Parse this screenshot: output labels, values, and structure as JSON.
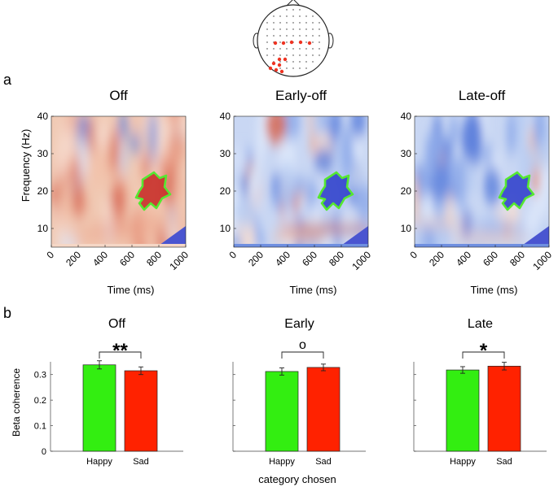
{
  "panel_labels": {
    "a": "a",
    "b": "b"
  },
  "tf_panels": [
    {
      "title": "Off",
      "variant": "off"
    },
    {
      "title": "Early-off",
      "variant": "early"
    },
    {
      "title": "Late-off",
      "variant": "late"
    }
  ],
  "tf_axes": {
    "ylabel": "Frequency (Hz)",
    "xlabel": "Time (ms)",
    "yticks": [
      "10",
      "20",
      "30",
      "40"
    ],
    "xticks": [
      "0",
      "200",
      "400",
      "600",
      "800",
      "1000"
    ]
  },
  "chart_data": {
    "type": "bar",
    "ylabel": "Beta coherence",
    "xlabel": "category chosen",
    "ylim": [
      0,
      0.35
    ],
    "yticks": [
      "0",
      "0.1",
      "0.2",
      "0.3"
    ],
    "categories": [
      "Happy",
      "Sad"
    ],
    "panels": [
      {
        "title": "Off",
        "values": [
          0.338,
          0.315
        ],
        "errors": [
          0.016,
          0.015
        ],
        "significance": "**"
      },
      {
        "title": "Early",
        "values": [
          0.312,
          0.328
        ],
        "errors": [
          0.014,
          0.013
        ],
        "significance": "o"
      },
      {
        "title": "Late",
        "values": [
          0.318,
          0.333
        ],
        "errors": [
          0.013,
          0.015
        ],
        "significance": "*"
      }
    ]
  },
  "colors": {
    "happy": "#33ee11",
    "sad": "#ff2200",
    "contour": "#55e830",
    "electrode": "#ee3322"
  }
}
